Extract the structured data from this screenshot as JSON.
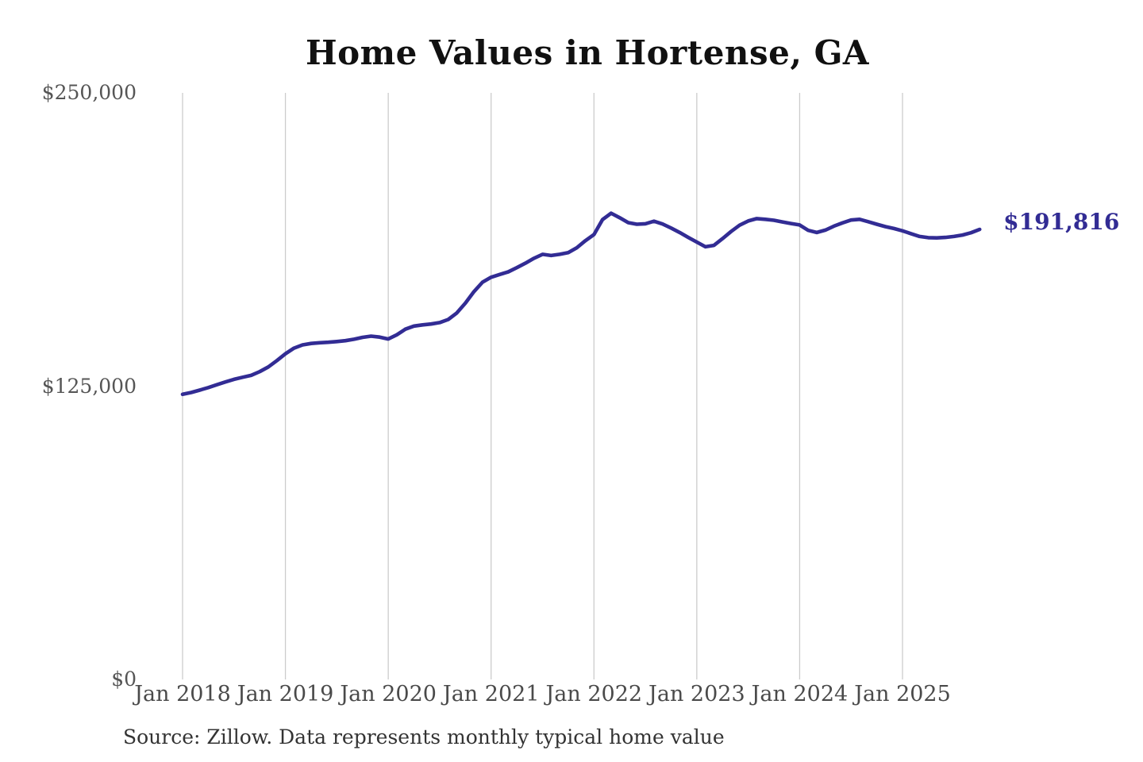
{
  "page": {
    "title": "Home Values in Hortense, GA",
    "source_note": "Source: Zillow. Data represents monthly typical home value"
  },
  "chart_data": {
    "type": "line",
    "title": "Home Values in Hortense, GA",
    "series_name": "Monthly typical home value",
    "x": [
      "2018-01",
      "2018-02",
      "2018-03",
      "2018-04",
      "2018-05",
      "2018-06",
      "2018-07",
      "2018-08",
      "2018-09",
      "2018-10",
      "2018-11",
      "2018-12",
      "2019-01",
      "2019-02",
      "2019-03",
      "2019-04",
      "2019-05",
      "2019-06",
      "2019-07",
      "2019-08",
      "2019-09",
      "2019-10",
      "2019-11",
      "2019-12",
      "2020-01",
      "2020-02",
      "2020-03",
      "2020-04",
      "2020-05",
      "2020-06",
      "2020-07",
      "2020-08",
      "2020-09",
      "2020-10",
      "2020-11",
      "2020-12",
      "2021-01",
      "2021-02",
      "2021-03",
      "2021-04",
      "2021-05",
      "2021-06",
      "2021-07",
      "2021-08",
      "2021-09",
      "2021-10",
      "2021-11",
      "2021-12",
      "2022-01",
      "2022-02",
      "2022-03",
      "2022-04",
      "2022-05",
      "2022-06",
      "2022-07",
      "2022-08",
      "2022-09",
      "2022-10",
      "2022-11",
      "2022-12",
      "2023-01",
      "2023-02",
      "2023-03",
      "2023-04",
      "2023-05",
      "2023-06",
      "2023-07",
      "2023-08",
      "2023-09",
      "2023-10",
      "2023-11",
      "2023-12",
      "2024-01",
      "2024-02",
      "2024-03",
      "2024-04",
      "2024-05",
      "2024-06",
      "2024-07",
      "2024-08",
      "2024-09",
      "2024-10",
      "2024-11",
      "2024-12",
      "2025-01",
      "2025-02",
      "2025-03",
      "2025-04",
      "2025-05",
      "2025-06",
      "2025-07",
      "2025-08",
      "2025-09",
      "2025-10"
    ],
    "values": [
      121500,
      122300,
      123300,
      124400,
      125600,
      126800,
      127900,
      128800,
      129600,
      131200,
      133200,
      135900,
      138800,
      141200,
      142600,
      143200,
      143500,
      143700,
      144000,
      144400,
      145000,
      145800,
      146300,
      145900,
      145100,
      146900,
      149300,
      150600,
      151100,
      151500,
      152100,
      153400,
      156200,
      160400,
      165300,
      169300,
      171400,
      172600,
      173700,
      175500,
      177400,
      179500,
      181200,
      180700,
      181200,
      181900,
      184000,
      187000,
      189600,
      196000,
      198700,
      196800,
      194700,
      194000,
      194200,
      195300,
      194100,
      192400,
      190500,
      188400,
      186400,
      184400,
      185000,
      187900,
      190900,
      193600,
      195400,
      196400,
      196100,
      195700,
      195000,
      194300,
      193700,
      191400,
      190500,
      191500,
      193200,
      194600,
      195800,
      196100,
      195100,
      194000,
      193000,
      192200,
      191200,
      190000,
      188800,
      188300,
      188200,
      188400,
      188800,
      189400,
      190400,
      191816
    ],
    "end_value": 191816,
    "end_label": "$191,816",
    "xticks": [
      "Jan 2018",
      "Jan 2019",
      "Jan 2020",
      "Jan 2021",
      "Jan 2022",
      "Jan 2023",
      "Jan 2024",
      "Jan 2025"
    ],
    "yticks": [
      {
        "value": 0,
        "label": "$0"
      },
      {
        "value": 125000,
        "label": "$125,000"
      },
      {
        "value": 250000,
        "label": "$250,000"
      }
    ],
    "ylim": [
      0,
      250000
    ],
    "grid": "vertical-only",
    "legend": "none",
    "colors": {
      "line": "#322c94",
      "grid": "#cccccc",
      "title": "#111111",
      "ticks": "#4a4a4a",
      "source": "#333333"
    }
  }
}
